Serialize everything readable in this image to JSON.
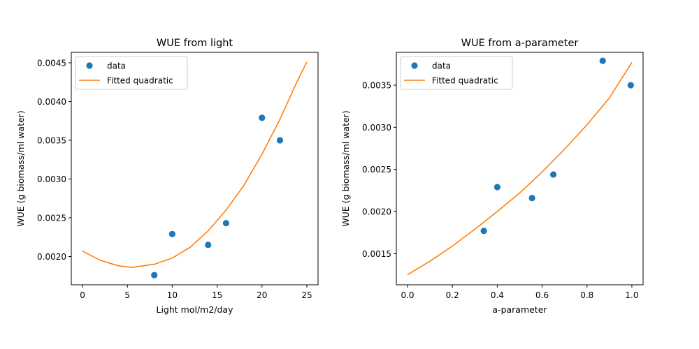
{
  "colors": {
    "data": "#1f77b4",
    "fit": "#ff7f0e",
    "axes": "#000000"
  },
  "chart_data": [
    {
      "type": "scatter",
      "title": "WUE from light",
      "xlabel": "Light mol/m2/day",
      "ylabel": "WUE (g biomass/ml water)",
      "xlim": [
        -1.25,
        26.25
      ],
      "ylim": [
        0.001635,
        0.004635
      ],
      "xticks": [
        0,
        5,
        10,
        15,
        20,
        25
      ],
      "xtick_labels": [
        "0",
        "5",
        "10",
        "15",
        "20",
        "25"
      ],
      "yticks": [
        0.002,
        0.0025,
        0.003,
        0.0035,
        0.004,
        0.0045
      ],
      "ytick_labels": [
        "0.0020",
        "0.0025",
        "0.0030",
        "0.0035",
        "0.0040",
        "0.0045"
      ],
      "grid": false,
      "legend_position": "top-left",
      "series": [
        {
          "name": "data",
          "kind": "scatter",
          "x": [
            8,
            10,
            14,
            16,
            20,
            22
          ],
          "y": [
            0.00176,
            0.00229,
            0.00215,
            0.00243,
            0.00379,
            0.0035
          ]
        },
        {
          "name": "Fitted quadratic",
          "kind": "line",
          "x": [
            0,
            2,
            4,
            5.5,
            8,
            10,
            12,
            14,
            16,
            18,
            20,
            22,
            24,
            25
          ],
          "y": [
            0.00207,
            0.00195,
            0.00188,
            0.00186,
            0.0019,
            0.00198,
            0.00212,
            0.00233,
            0.0026,
            0.00292,
            0.00332,
            0.00377,
            0.00428,
            0.00451
          ]
        }
      ]
    },
    {
      "type": "scatter",
      "title": "WUE from a-parameter",
      "xlabel": "a-parameter",
      "ylabel": "WUE (g biomass/ml water)",
      "xlim": [
        -0.05,
        1.05
      ],
      "ylim": [
        0.00113,
        0.00389
      ],
      "xticks": [
        0,
        0.2,
        0.4,
        0.6,
        0.8,
        1.0
      ],
      "xtick_labels": [
        "0.0",
        "0.2",
        "0.4",
        "0.6",
        "0.8",
        "1.0"
      ],
      "yticks": [
        0.0015,
        0.002,
        0.0025,
        0.003,
        0.0035
      ],
      "ytick_labels": [
        "0.0015",
        "0.0020",
        "0.0025",
        "0.0030",
        "0.0035"
      ],
      "grid": false,
      "legend_position": "top-left",
      "series": [
        {
          "name": "data",
          "kind": "scatter",
          "x": [
            0.34,
            0.4,
            0.555,
            0.65,
            0.87,
            0.995
          ],
          "y": [
            0.00177,
            0.00229,
            0.00216,
            0.00244,
            0.00379,
            0.0035
          ]
        },
        {
          "name": "Fitted quadratic",
          "kind": "line",
          "x": [
            0,
            0.1,
            0.2,
            0.3,
            0.4,
            0.5,
            0.6,
            0.7,
            0.8,
            0.9,
            1.0
          ],
          "y": [
            0.00125,
            0.00141,
            0.00159,
            0.00179,
            0.002,
            0.00222,
            0.00247,
            0.00274,
            0.00303,
            0.00335,
            0.00377
          ]
        }
      ]
    }
  ]
}
